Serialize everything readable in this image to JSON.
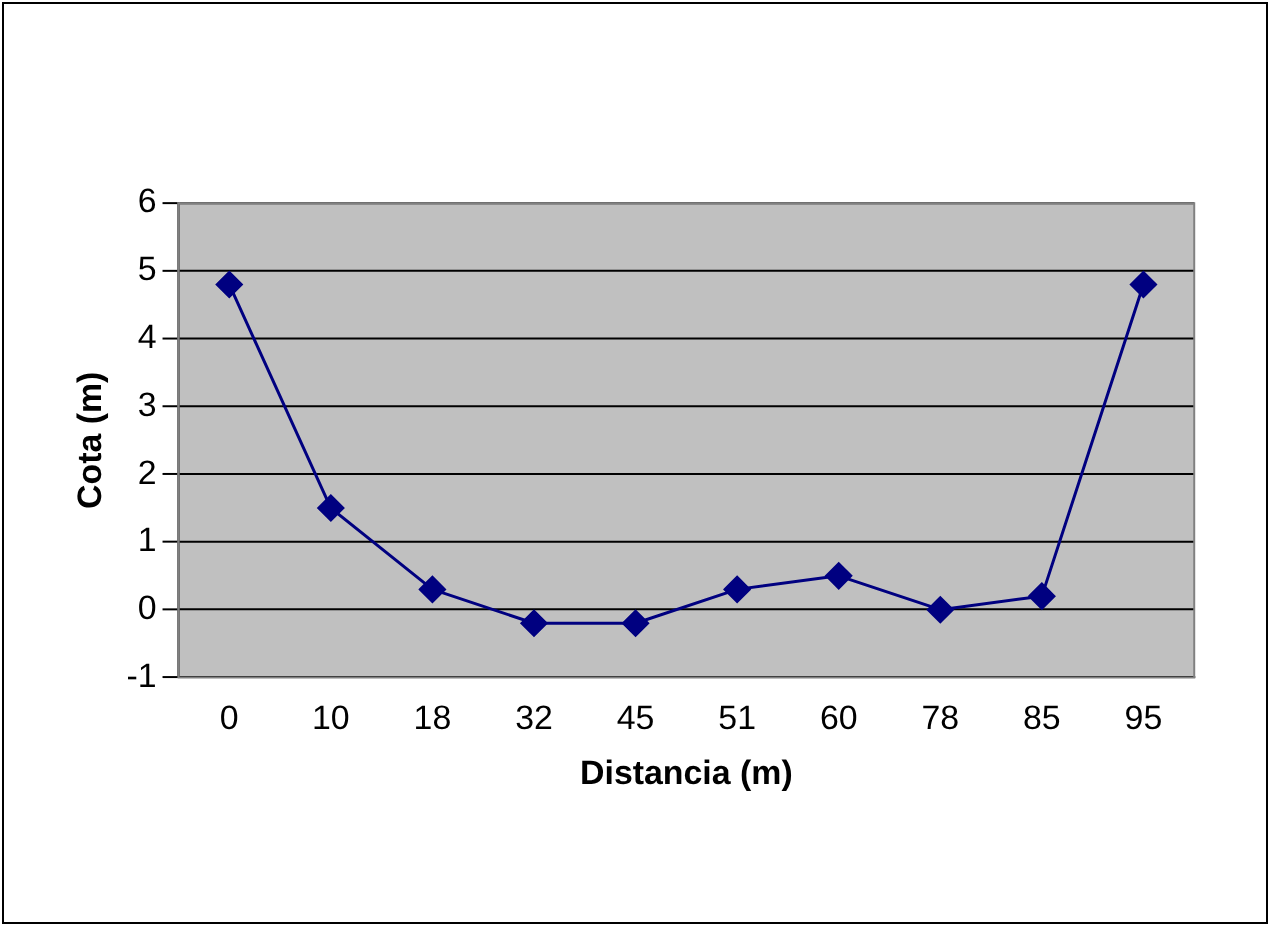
{
  "chart_data": {
    "type": "line",
    "xlabel": "Distancia (m)",
    "ylabel": "Cota (m)",
    "categories": [
      "0",
      "10",
      "18",
      "32",
      "45",
      "51",
      "60",
      "78",
      "85",
      "95"
    ],
    "series": [
      {
        "color": "#000080",
        "values": [
          4.8,
          1.5,
          0.3,
          -0.2,
          -0.2,
          0.3,
          0.5,
          0,
          0.2,
          4.8
        ]
      }
    ],
    "ylim": [
      -1,
      6
    ],
    "yticks": [
      -1,
      0,
      1,
      2,
      3,
      4,
      5,
      6
    ],
    "grid": "y",
    "legend": false,
    "marker": "diamond",
    "line_style": "solid"
  }
}
